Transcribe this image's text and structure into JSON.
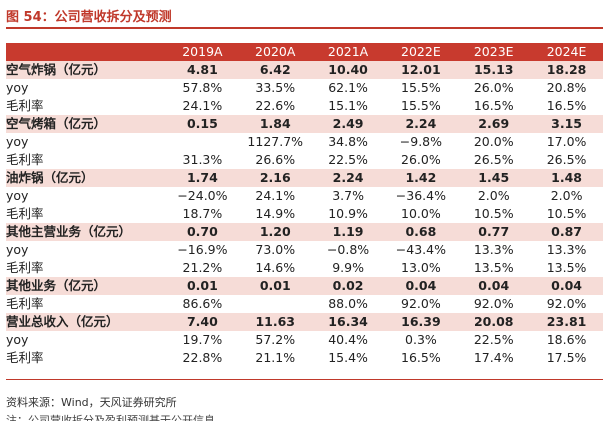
{
  "figure": {
    "title": "图 54：公司营收拆分及预测",
    "source": "资料来源：Wind，天风证券研究所",
    "cut_off_note": "注：公司营收拆分及盈利预测基于公开信息"
  },
  "colors": {
    "accent": "#c0392b",
    "header_bg": "#c83a2e",
    "section_bg": "#f6dcd7"
  },
  "table": {
    "years": [
      "2019A",
      "2020A",
      "2021A",
      "2022E",
      "2023E",
      "2024E"
    ],
    "rows": [
      {
        "label": "空气炸锅（亿元）",
        "type": "section",
        "values": [
          "4.81",
          "6.42",
          "10.40",
          "12.01",
          "15.13",
          "18.28"
        ]
      },
      {
        "label": "yoy",
        "type": "data",
        "values": [
          "57.8%",
          "33.5%",
          "62.1%",
          "15.5%",
          "26.0%",
          "20.8%"
        ]
      },
      {
        "label": "毛利率",
        "type": "data",
        "values": [
          "24.1%",
          "22.6%",
          "15.1%",
          "15.5%",
          "16.5%",
          "16.5%"
        ]
      },
      {
        "label": "空气烤箱（亿元）",
        "type": "section",
        "values": [
          "0.15",
          "1.84",
          "2.49",
          "2.24",
          "2.69",
          "3.15"
        ]
      },
      {
        "label": "yoy",
        "type": "data",
        "values": [
          "",
          "1127.7%",
          "34.8%",
          "−9.8%",
          "20.0%",
          "17.0%"
        ]
      },
      {
        "label": "毛利率",
        "type": "data",
        "values": [
          "31.3%",
          "26.6%",
          "22.5%",
          "26.0%",
          "26.5%",
          "26.5%"
        ]
      },
      {
        "label": "油炸锅（亿元）",
        "type": "section",
        "values": [
          "1.74",
          "2.16",
          "2.24",
          "1.42",
          "1.45",
          "1.48"
        ]
      },
      {
        "label": "yoy",
        "type": "data",
        "values": [
          "−24.0%",
          "24.1%",
          "3.7%",
          "−36.4%",
          "2.0%",
          "2.0%"
        ]
      },
      {
        "label": "毛利率",
        "type": "data",
        "values": [
          "18.7%",
          "14.9%",
          "10.9%",
          "10.0%",
          "10.5%",
          "10.5%"
        ]
      },
      {
        "label": "其他主营业务（亿元）",
        "type": "section",
        "values": [
          "0.70",
          "1.20",
          "1.19",
          "0.68",
          "0.77",
          "0.87"
        ]
      },
      {
        "label": "yoy",
        "type": "data",
        "values": [
          "−16.9%",
          "73.0%",
          "−0.8%",
          "−43.4%",
          "13.3%",
          "13.3%"
        ]
      },
      {
        "label": "毛利率",
        "type": "data",
        "values": [
          "21.2%",
          "14.6%",
          "9.9%",
          "13.0%",
          "13.5%",
          "13.5%"
        ]
      },
      {
        "label": "其他业务（亿元）",
        "type": "section",
        "values": [
          "0.01",
          "0.01",
          "0.02",
          "0.04",
          "0.04",
          "0.04"
        ]
      },
      {
        "label": "毛利率",
        "type": "data",
        "values": [
          "86.6%",
          "",
          "88.0%",
          "92.0%",
          "92.0%",
          "92.0%"
        ]
      },
      {
        "label": "营业总收入（亿元）",
        "type": "section",
        "values": [
          "7.40",
          "11.63",
          "16.34",
          "16.39",
          "20.08",
          "23.81"
        ]
      },
      {
        "label": "yoy",
        "type": "data",
        "values": [
          "19.7%",
          "57.2%",
          "40.4%",
          "0.3%",
          "22.5%",
          "18.6%"
        ]
      },
      {
        "label": "毛利率",
        "type": "data",
        "values": [
          "22.8%",
          "21.1%",
          "15.4%",
          "16.5%",
          "17.4%",
          "17.5%"
        ]
      }
    ]
  }
}
